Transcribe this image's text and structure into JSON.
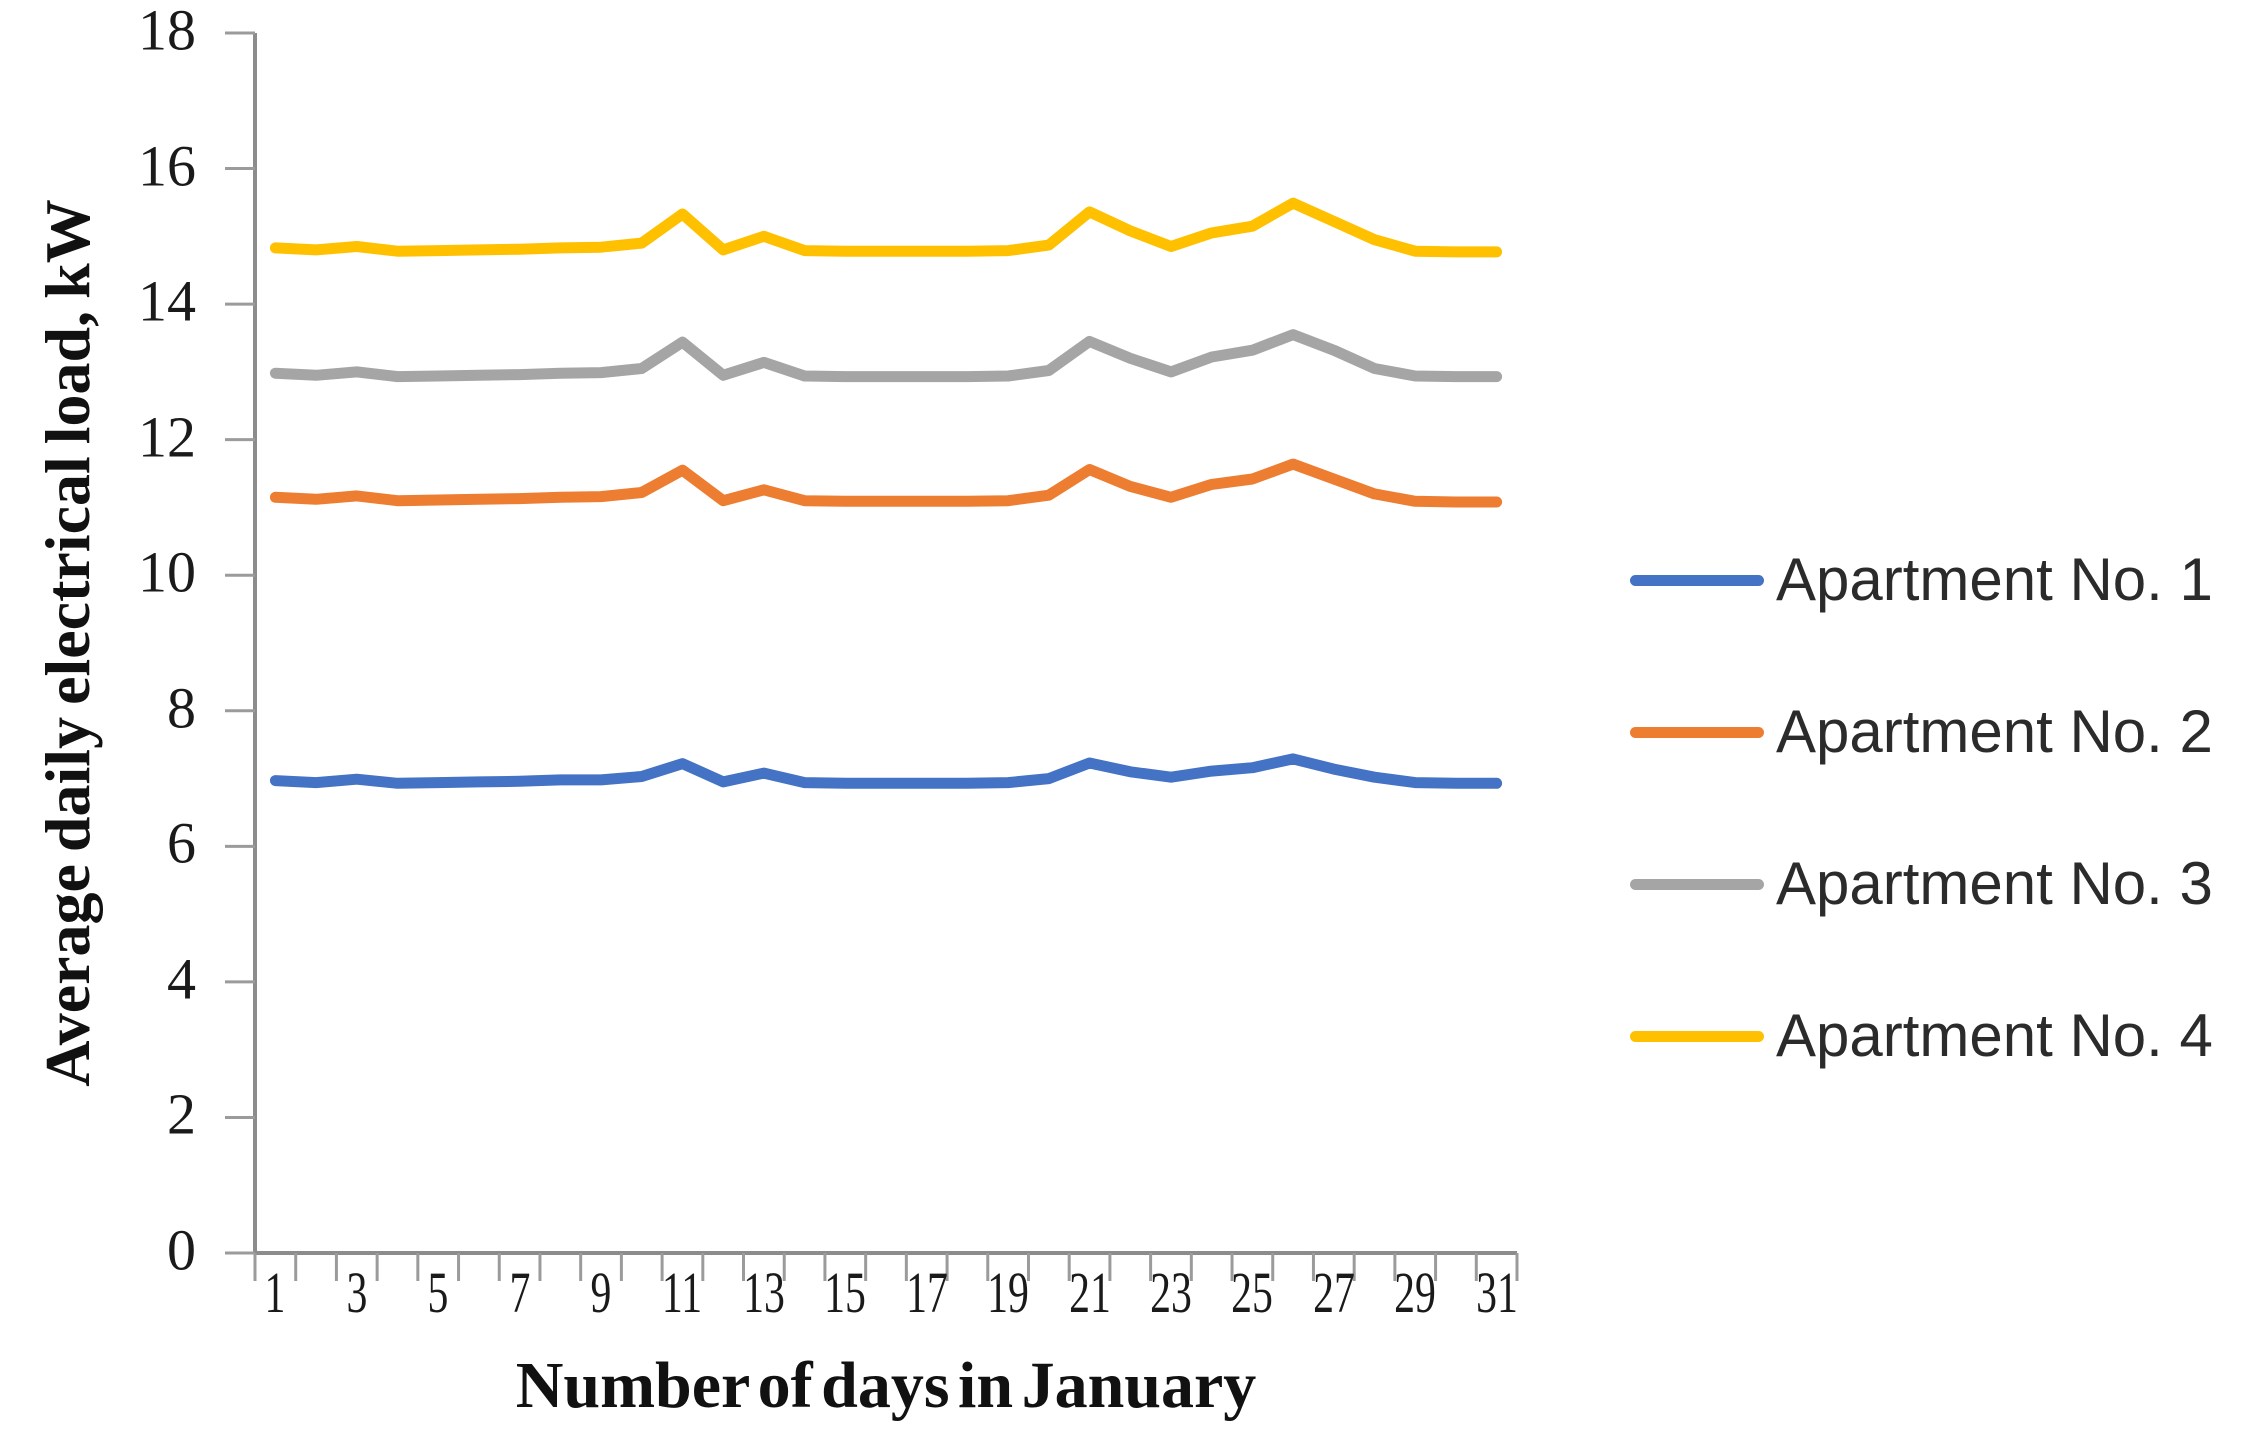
{
  "chart_data": {
    "type": "line",
    "title": "",
    "xlabel": "Number of days in January",
    "ylabel": "Average daily electrical load, kW",
    "x": [
      1,
      2,
      3,
      4,
      5,
      6,
      7,
      8,
      9,
      10,
      11,
      12,
      13,
      14,
      15,
      16,
      17,
      18,
      19,
      20,
      21,
      22,
      23,
      24,
      25,
      26,
      27,
      28,
      29,
      30,
      31
    ],
    "x_tick_labels": [
      1,
      3,
      5,
      7,
      9,
      11,
      13,
      15,
      17,
      19,
      21,
      23,
      25,
      27,
      29,
      31
    ],
    "y_ticks": [
      0,
      2,
      4,
      6,
      8,
      10,
      12,
      14,
      16,
      18
    ],
    "ylim": [
      0,
      18
    ],
    "xlim_days": [
      1,
      31
    ],
    "grid": false,
    "legend_position": "right",
    "axis_color": "#8C8C8C",
    "tick_color": "#9B9B9B",
    "text_color": "#1a1a1a",
    "series": [
      {
        "name": "Apartment No. 1",
        "color": "#4472C4",
        "values": [
          6.97,
          6.94,
          6.99,
          6.93,
          6.94,
          6.95,
          6.96,
          6.98,
          6.98,
          7.03,
          7.22,
          6.95,
          7.08,
          6.94,
          6.93,
          6.93,
          6.93,
          6.93,
          6.94,
          7.0,
          7.23,
          7.1,
          7.02,
          7.11,
          7.16,
          7.29,
          7.14,
          7.02,
          6.94,
          6.93,
          6.93
        ]
      },
      {
        "name": "Apartment No. 2",
        "color": "#ED7D31",
        "values": [
          11.15,
          11.12,
          11.17,
          11.1,
          11.11,
          11.12,
          11.13,
          11.15,
          11.16,
          11.22,
          11.55,
          11.1,
          11.26,
          11.1,
          11.09,
          11.09,
          11.09,
          11.09,
          11.1,
          11.18,
          11.56,
          11.31,
          11.15,
          11.34,
          11.42,
          11.64,
          11.42,
          11.2,
          11.09,
          11.08,
          11.08
        ]
      },
      {
        "name": "Apartment No. 3",
        "color": "#A5A5A5",
        "values": [
          12.98,
          12.95,
          13.0,
          12.93,
          12.94,
          12.95,
          12.96,
          12.98,
          12.99,
          13.05,
          13.44,
          12.95,
          13.14,
          12.94,
          12.93,
          12.93,
          12.93,
          12.93,
          12.94,
          13.02,
          13.45,
          13.2,
          13.0,
          13.22,
          13.32,
          13.55,
          13.32,
          13.05,
          12.94,
          12.93,
          12.93
        ]
      },
      {
        "name": "Apartment No. 4",
        "color": "#FFC000",
        "values": [
          14.83,
          14.8,
          14.85,
          14.78,
          14.79,
          14.8,
          14.81,
          14.83,
          14.84,
          14.9,
          15.33,
          14.8,
          15.0,
          14.79,
          14.78,
          14.78,
          14.78,
          14.78,
          14.79,
          14.87,
          15.36,
          15.08,
          14.85,
          15.05,
          15.15,
          15.49,
          15.22,
          14.95,
          14.78,
          14.77,
          14.77
        ]
      }
    ]
  }
}
